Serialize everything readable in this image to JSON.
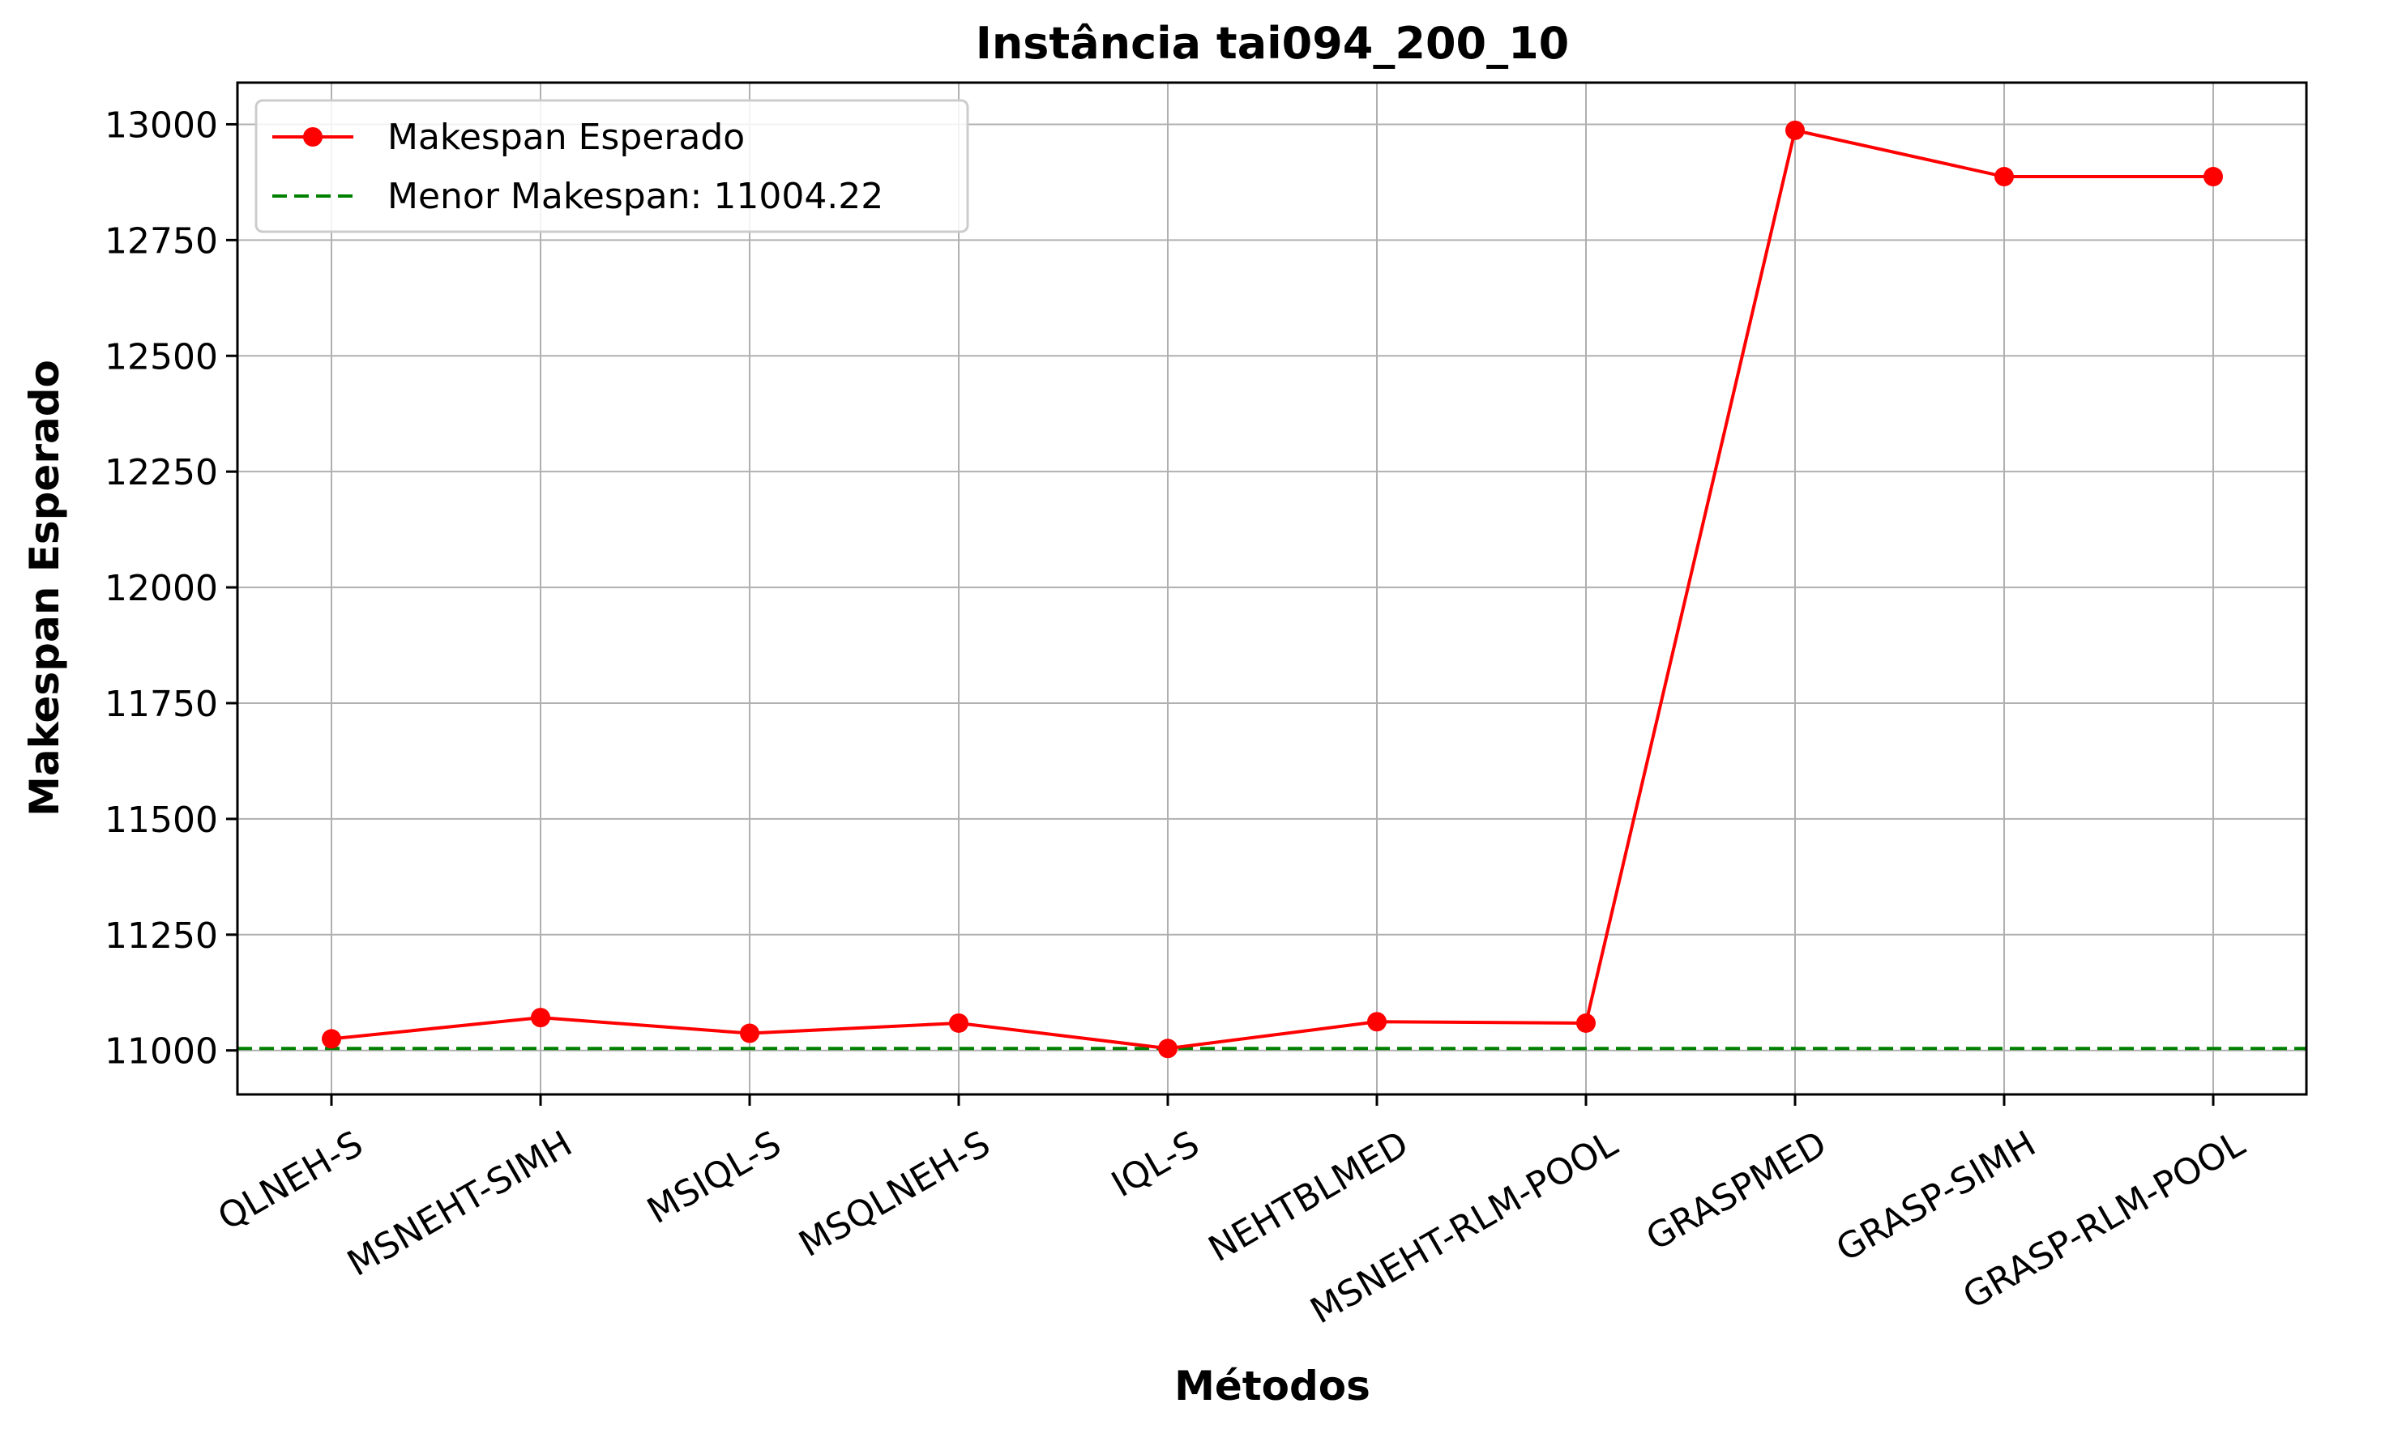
{
  "chart_data": {
    "type": "line",
    "title": "Instância tai094_200_10",
    "xlabel": "Métodos",
    "ylabel": "Makespan Esperado",
    "categories": [
      "QLNEH-S",
      "MSNEHT-SIMH",
      "MSIQL-S",
      "MSQLNEH-S",
      "IQL-S",
      "NEHTBLMED",
      "MSNEHT-RLM-POOL",
      "GRASPMED",
      "GRASP-SIMH",
      "GRASP-RLM-POOL"
    ],
    "series": [
      {
        "name": "Makespan Esperado",
        "values": [
          11025,
          11071,
          11037,
          11059,
          11004.22,
          11062,
          11059,
          12987,
          12887,
          12887
        ],
        "color": "#ff0000",
        "marker": "circle"
      }
    ],
    "reference_line": {
      "name": "Menor Makespan: 11004.22",
      "value": 11004.22,
      "color": "#008000",
      "style": "dashed"
    },
    "ylim": [
      10905,
      13090
    ],
    "yticks": [
      "11000",
      "11250",
      "11500",
      "11750",
      "12000",
      "12250",
      "12500",
      "12750",
      "13000"
    ],
    "grid": true,
    "legend_position": "top-left"
  }
}
